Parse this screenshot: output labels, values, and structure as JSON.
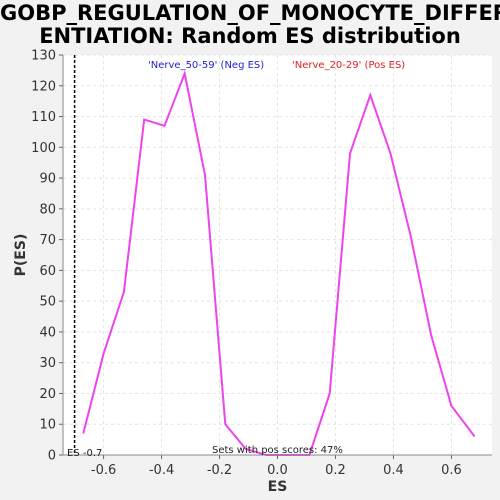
{
  "chart_data": {
    "type": "line",
    "title_line1": "GOBP_REGULATION_OF_MONOCYTE_DIFFER",
    "title_line2": "ENTIATION: Random ES distribution",
    "xlabel": "ES",
    "ylabel": "P(ES)",
    "xlim": [
      -0.74,
      0.74
    ],
    "ylim": [
      0,
      130
    ],
    "x_ticks": [
      -0.6,
      -0.4,
      -0.2,
      0.0,
      0.2,
      0.4,
      0.6
    ],
    "x_tick_labels": [
      "-0.6",
      "-0.4",
      "-0.2",
      "0.0",
      "0.2",
      "0.4",
      "0.6"
    ],
    "y_ticks": [
      0,
      10,
      20,
      30,
      40,
      50,
      60,
      70,
      80,
      90,
      100,
      110,
      120,
      130
    ],
    "y_tick_labels": [
      "0",
      "10",
      "20",
      "30",
      "40",
      "50",
      "60",
      "70",
      "80",
      "90",
      "100",
      "110",
      "120",
      "130"
    ],
    "grid": true,
    "series": [
      {
        "color": "#ee44ee",
        "x": [
          -0.67,
          -0.6,
          -0.53,
          -0.46,
          -0.39,
          -0.32,
          -0.25,
          -0.18,
          -0.11,
          -0.04,
          0.03,
          0.11,
          0.18,
          0.25,
          0.32,
          0.39,
          0.46,
          0.53,
          0.6,
          0.68
        ],
        "y": [
          7,
          33,
          53,
          109,
          107,
          124,
          91,
          10,
          2,
          0,
          0,
          0,
          20,
          98,
          117,
          98,
          71,
          39,
          16,
          6
        ]
      }
    ],
    "legend": [
      {
        "label": "'Nerve_50-59' (Neg ES)",
        "color": "#2222cc",
        "placement": "top-left"
      },
      {
        "label": "'Nerve_20-29' (Pos ES)",
        "color": "#dd2222",
        "placement": "top-right"
      }
    ],
    "marker_line": {
      "x": -0.7,
      "style": "dotted",
      "label": "ES -0.7"
    },
    "annotation": "Sets with pos scores: 47%"
  }
}
